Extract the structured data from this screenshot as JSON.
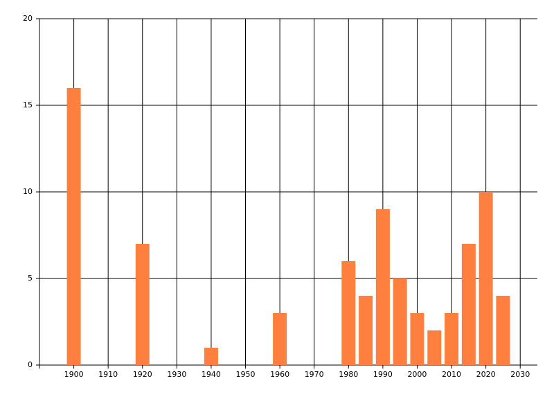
{
  "chart_data": {
    "type": "bar",
    "x": [
      1900,
      1920,
      1940,
      1960,
      1980,
      1985,
      1990,
      1995,
      2000,
      2005,
      2010,
      2015,
      2020,
      2025
    ],
    "values": [
      16,
      7,
      1,
      3,
      6,
      4,
      9,
      5,
      3,
      2,
      3,
      7,
      10,
      4
    ],
    "color": "#ff7f3f",
    "xlim": [
      1890,
      2035
    ],
    "xticks": [
      1900,
      1910,
      1920,
      1930,
      1940,
      1950,
      1960,
      1970,
      1980,
      1990,
      2000,
      2010,
      2020,
      2030
    ],
    "ylim": [
      0,
      20
    ],
    "yticks": [
      0,
      5,
      10,
      15,
      20
    ],
    "grid": true
  }
}
